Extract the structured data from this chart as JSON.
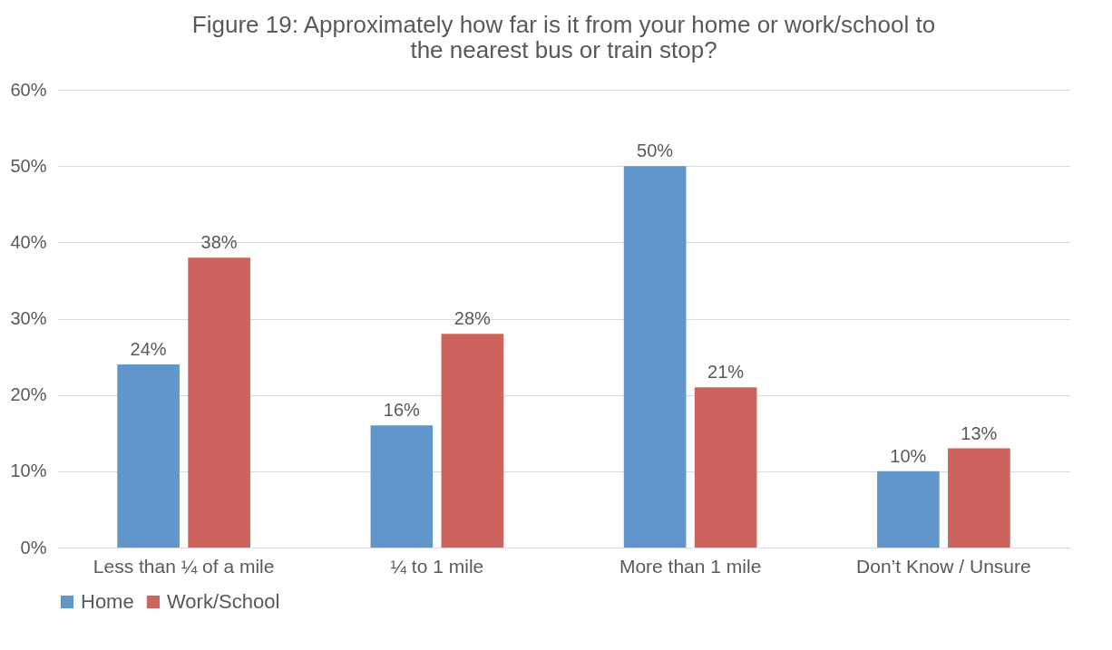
{
  "chart_data": {
    "type": "bar",
    "title": "Figure 19: Approximately how far is it from your home or work/school to\nthe nearest bus or train stop?",
    "categories": [
      "Less than ¼ of a mile",
      "¼ to 1 mile",
      "More than 1 mile",
      "Don’t Know / Unsure"
    ],
    "series": [
      {
        "name": "Home",
        "color": "#6096c9",
        "values": [
          24,
          16,
          50,
          10
        ],
        "value_labels": [
          "24%",
          "16%",
          "50%",
          "10%"
        ]
      },
      {
        "name": "Work/School",
        "color": "#cd645d",
        "values": [
          38,
          28,
          21,
          13
        ],
        "value_labels": [
          "38%",
          "28%",
          "21%",
          "13%"
        ]
      }
    ],
    "ylim": [
      0,
      60
    ],
    "yticks": [
      {
        "value": 0,
        "label": "0%"
      },
      {
        "value": 10,
        "label": "10%"
      },
      {
        "value": 20,
        "label": "20%"
      },
      {
        "value": 30,
        "label": "30%"
      },
      {
        "value": 40,
        "label": "40%"
      },
      {
        "value": 50,
        "label": "50%"
      },
      {
        "value": 60,
        "label": "60%"
      }
    ],
    "grid": "y",
    "legend": "bottom"
  }
}
